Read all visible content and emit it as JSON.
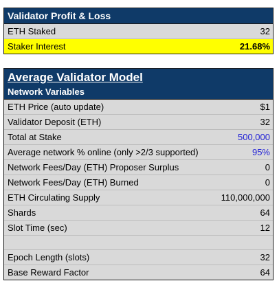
{
  "profit_loss": {
    "title": "Validator Profit & Loss",
    "rows": [
      {
        "label": "ETH Staked",
        "value": "32"
      },
      {
        "label": "Staker Interest",
        "value": "21.68%"
      }
    ]
  },
  "model": {
    "title": "Average Validator Model",
    "section": "Network Variables",
    "rows": [
      {
        "label": "ETH Price (auto update)",
        "value": "$1"
      },
      {
        "label": "Validator Deposit (ETH)",
        "value": "32"
      },
      {
        "label": "Total at Stake",
        "value": "500,000"
      },
      {
        "label": "Average network % online (only >2/3 supported)",
        "value": "95%"
      },
      {
        "label": "Network Fees/Day (ETH) Proposer Surplus",
        "value": "0"
      },
      {
        "label": "Network Fees/Day (ETH) Burned",
        "value": "0"
      },
      {
        "label": "ETH Circulating Supply",
        "value": "110,000,000"
      },
      {
        "label": "Shards",
        "value": "64"
      },
      {
        "label": "Slot Time (sec)",
        "value": "12"
      },
      {
        "label": "Epoch Length (slots)",
        "value": "32"
      },
      {
        "label": "Base Reward Factor",
        "value": "64"
      }
    ]
  },
  "colors": {
    "header_bg": "#0f3a68",
    "highlight": "#ffff00",
    "input_blue": "#1f1fd6",
    "cell_bg": "#d9d9d9"
  }
}
